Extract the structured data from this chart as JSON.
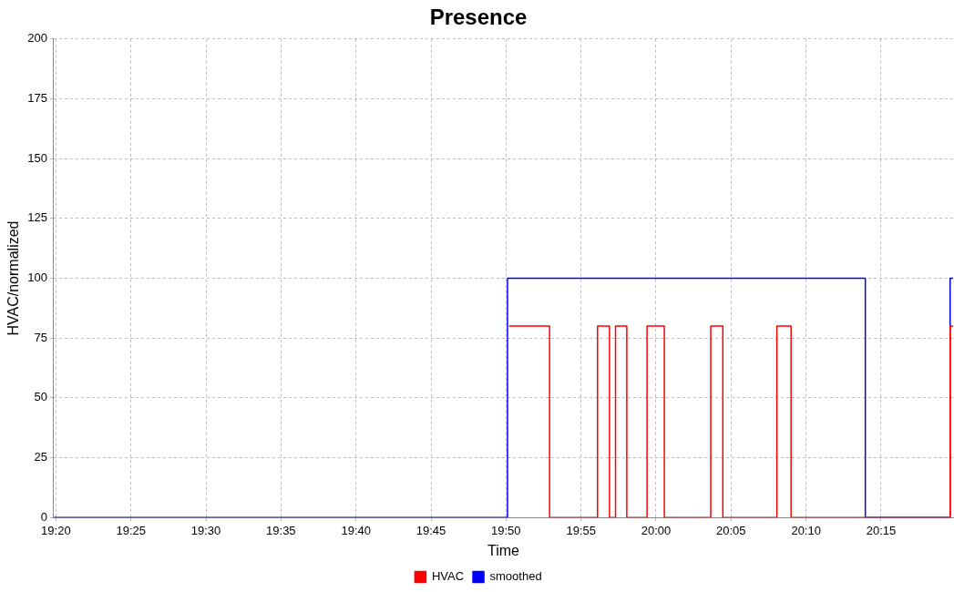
{
  "chart_data": {
    "type": "step",
    "title": "Presence",
    "xlabel": "Time",
    "ylabel": "HVAC/normalized",
    "xlim": [
      19.3308,
      20.33
    ],
    "xticks": [
      {
        "value": 19.3333,
        "label": "19:20"
      },
      {
        "value": 19.4167,
        "label": "19:25"
      },
      {
        "value": 19.5,
        "label": "19:30"
      },
      {
        "value": 19.5833,
        "label": "19:35"
      },
      {
        "value": 19.6667,
        "label": "19:40"
      },
      {
        "value": 19.75,
        "label": "19:45"
      },
      {
        "value": 19.8333,
        "label": "19:50"
      },
      {
        "value": 19.9167,
        "label": "19:55"
      },
      {
        "value": 20.0,
        "label": "20:00"
      },
      {
        "value": 20.0833,
        "label": "20:05"
      },
      {
        "value": 20.1667,
        "label": "20:10"
      },
      {
        "value": 20.25,
        "label": "20:15"
      }
    ],
    "ylim": [
      0,
      200
    ],
    "yticks": [
      0,
      25,
      50,
      75,
      100,
      125,
      150,
      175,
      200
    ],
    "grid": true,
    "legend": "bottom",
    "marker": "none",
    "series": [
      {
        "name": "HVAC",
        "color": "#ff0000",
        "x": [
          19.8367,
          19.8817,
          19.935,
          19.9483,
          19.955,
          19.9675,
          19.99,
          20.0092,
          20.0608,
          20.0742,
          20.1342,
          20.15,
          20.3267,
          20.33
        ],
        "values": [
          80,
          0,
          80,
          0,
          80,
          0,
          80,
          0,
          80,
          0,
          80,
          0,
          80,
          80
        ]
      },
      {
        "name": "smoothed",
        "color": "#0000ff",
        "x": [
          19.3308,
          19.835,
          20.2325,
          20.3267,
          20.33
        ],
        "values": [
          0,
          100,
          0,
          100,
          100
        ]
      }
    ]
  }
}
